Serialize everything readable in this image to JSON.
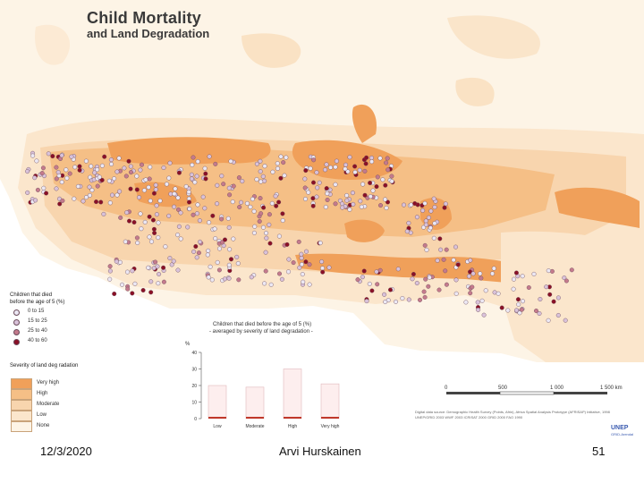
{
  "map": {
    "title_line1": "Child Mortality",
    "title_line2": "and Land Degradation",
    "colors": {
      "very_high": "#f0a05a",
      "high": "#f5bf86",
      "moderate": "#f8d5ae",
      "low": "#fbe6cc",
      "none": "#fdf4e6",
      "sea": "#ffffff",
      "dot_0_15": "#ece8f4",
      "dot_15_25": "#d9c2da",
      "dot_25_40": "#c47a8c",
      "dot_40_60": "#8a1026"
    }
  },
  "dot_legend": {
    "title_line1": "Children that died",
    "title_line2": "before the age of 5 (%)",
    "items": [
      {
        "label": "0 to 15"
      },
      {
        "label": "15 to 25"
      },
      {
        "label": "25 to 40"
      },
      {
        "label": "40 to 60"
      }
    ]
  },
  "severity_legend": {
    "title": "Severity of land deg radation",
    "items": [
      {
        "label": "Very high"
      },
      {
        "label": "High"
      },
      {
        "label": "Moderate"
      },
      {
        "label": "Low"
      },
      {
        "label": "None"
      }
    ]
  },
  "chart_data": {
    "type": "bar",
    "title": "Children that died before the age of 5 (%)",
    "subtitle": "- averaged by severity of land degradation -",
    "ylabel": "%",
    "categories": [
      "Low",
      "Moderate",
      "High",
      "Very high"
    ],
    "values": [
      20,
      19,
      30,
      21
    ],
    "ylim": [
      0,
      40
    ],
    "yticks": [
      0,
      10,
      20,
      30,
      40
    ]
  },
  "scale_bar": {
    "ticks": [
      "0",
      "500",
      "1 000",
      "1 500 km"
    ]
  },
  "source": {
    "line1": "Digital data source: Demographic Health Survey (Points, Afrin), Africa Spatial Analysis Prototype (AFRISAP) Initiative, 1998",
    "line2": "UNEP/GRID 2003  WWF 2003  ICRISAT 2000  GRID 2000  FAO 1990"
  },
  "logo": {
    "line1": "UNEP",
    "line2": "GRID-Arendal"
  },
  "footer": {
    "date": "12/3/2020",
    "author": "Arvi Hurskainen",
    "page": "51"
  }
}
